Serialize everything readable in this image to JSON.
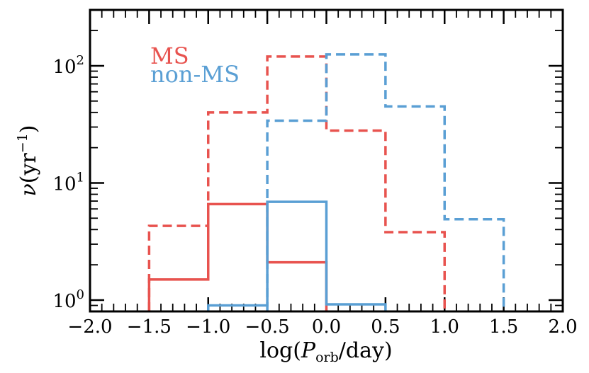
{
  "chart_data": {
    "type": "histogram",
    "xlabel": "log(P_orb/day)",
    "xlabel_parts": {
      "pre": "log(",
      "var": "P",
      "sub": "orb",
      "post": "/day)"
    },
    "ylabel": "ν(yr⁻¹)",
    "ylabel_parts": {
      "nu": "ν",
      "open": "(yr",
      "sup": "−1",
      "close": ")"
    },
    "xlim": [
      -2.0,
      2.0
    ],
    "ylim": [
      0.8,
      300
    ],
    "yscale": "log",
    "x_ticks": [
      -2.0,
      -1.5,
      -1.0,
      -0.5,
      0.0,
      0.5,
      1.0,
      1.5,
      2.0
    ],
    "x_tick_labels": [
      "−2.0",
      "−1.5",
      "−1.0",
      "−0.5",
      "0.0",
      "0.5",
      "1.0",
      "1.5",
      "2.0"
    ],
    "y_ticks": [
      1,
      10,
      100
    ],
    "y_tick_labels": [
      {
        "base": "10",
        "exp": "0"
      },
      {
        "base": "10",
        "exp": "1"
      },
      {
        "base": "10",
        "exp": "2"
      }
    ],
    "bin_edges": [
      -1.5,
      -1.0,
      -0.5,
      0.0,
      0.5,
      1.0,
      1.5
    ],
    "legend": [
      {
        "label": "MS",
        "color": "#e8534f"
      },
      {
        "label": "non-MS",
        "color": "#5a9fd4"
      }
    ],
    "legend_position": "top-left",
    "series": [
      {
        "group": "MS",
        "style": "dashed",
        "color": "#e8534f",
        "edges": [
          -1.5,
          -1.0,
          -0.5,
          0.0,
          0.5,
          1.0
        ],
        "values": [
          4.3,
          40,
          120,
          28,
          3.8
        ]
      },
      {
        "group": "MS",
        "style": "solid",
        "color": "#e8534f",
        "edges": [
          -1.5,
          -1.0,
          -0.5,
          0.0
        ],
        "values": [
          1.5,
          6.6,
          2.1
        ]
      },
      {
        "group": "non-MS",
        "style": "dashed",
        "color": "#5a9fd4",
        "edges": [
          -0.5,
          0.0,
          0.5,
          1.0,
          1.5
        ],
        "values": [
          34,
          125,
          45,
          4.9
        ]
      },
      {
        "group": "non-MS",
        "style": "solid",
        "color": "#5a9fd4",
        "edges": [
          -1.0,
          -0.5,
          0.0,
          0.5
        ],
        "values": [
          0.9,
          6.9,
          0.92
        ]
      }
    ]
  }
}
